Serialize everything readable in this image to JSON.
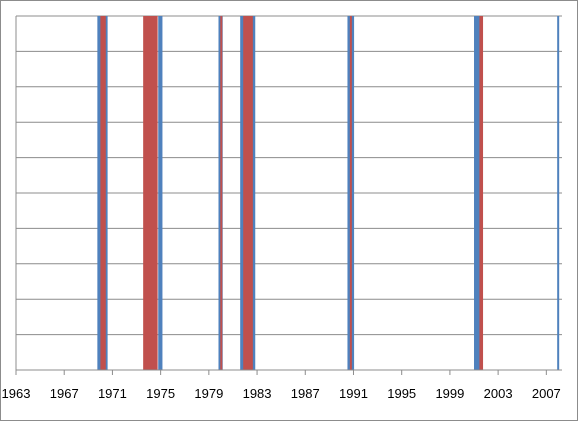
{
  "chart_data": {
    "type": "bar",
    "title": "",
    "xlabel": "",
    "ylabel": "",
    "x_tick_labels": [
      "1963",
      "1967",
      "1971",
      "1975",
      "1979",
      "1983",
      "1987",
      "1991",
      "1995",
      "1999",
      "2003",
      "2007"
    ],
    "x_ticks": [
      1963,
      1967,
      1971,
      1975,
      1979,
      1983,
      1987,
      1991,
      1995,
      1999,
      2003,
      2007
    ],
    "xlim": [
      1963,
      2008.3
    ],
    "ylim": [
      0,
      1
    ],
    "grid": "horizontal",
    "y_gridlines": 10,
    "legend": "none",
    "series": [
      {
        "color": "#4f81bd",
        "periods": [
          [
            1969.75,
            1970.6
          ],
          [
            1974.8,
            1975.15
          ],
          [
            1979.8,
            1980.15
          ],
          [
            1981.6,
            1982.85
          ],
          [
            1990.5,
            1991.05
          ],
          [
            2001.0,
            2001.55
          ],
          [
            2007.9,
            2008.0
          ]
        ]
      },
      {
        "color": "#c0504d",
        "periods": [
          [
            1970.0,
            1970.45
          ],
          [
            1973.55,
            1974.75
          ],
          [
            1979.95,
            1980.1
          ],
          [
            1981.85,
            1982.65
          ],
          [
            1990.7,
            1990.85
          ],
          [
            2001.45,
            2001.75
          ]
        ]
      }
    ]
  }
}
